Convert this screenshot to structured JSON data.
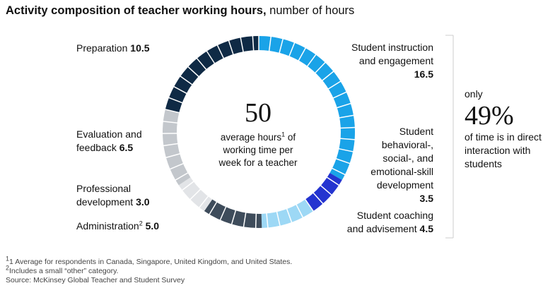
{
  "chart_data": {
    "type": "donut",
    "title": "Activity composition of teacher working hours,",
    "subtitle": "number of hours",
    "categories": [
      "Student instruction and engagement",
      "Student behavioral-, social-, and emotional-skill development",
      "Student coaching and advisement",
      "Administration",
      "Professional development",
      "Evaluation and feedback",
      "Preparation"
    ],
    "values": [
      16.5,
      3.5,
      4.5,
      5.0,
      3.0,
      6.5,
      10.5
    ],
    "value_labels": [
      "16.5",
      "3.5",
      "4.5",
      "5.0",
      "3.0",
      "6.5",
      "10.5"
    ],
    "colors": [
      "#1aa3e8",
      "#2434d0",
      "#9dd8f5",
      "#3e4c5b",
      "#e2e4e7",
      "#c3c7cc",
      "#0f2a45"
    ],
    "center_value": 50,
    "center_text_before": "average hours",
    "center_text_after": "of working time per week for a teacher",
    "footnote_marks": {
      "average_hours": "1",
      "administration": "2"
    },
    "callout": {
      "prefix": "only",
      "value": {
        "value": 49,
        "label": "49%"
      },
      "text": "of time is in direct interaction with students"
    },
    "notes": [
      {
        "mark": "1",
        "text": "1 Average for respondents in Canada, Singapore, United Kingdom, and United States."
      },
      {
        "mark": "2",
        "text": "Includes a small “other” category."
      }
    ],
    "source": "Source: McKinsey Global Teacher and Student Survey"
  }
}
